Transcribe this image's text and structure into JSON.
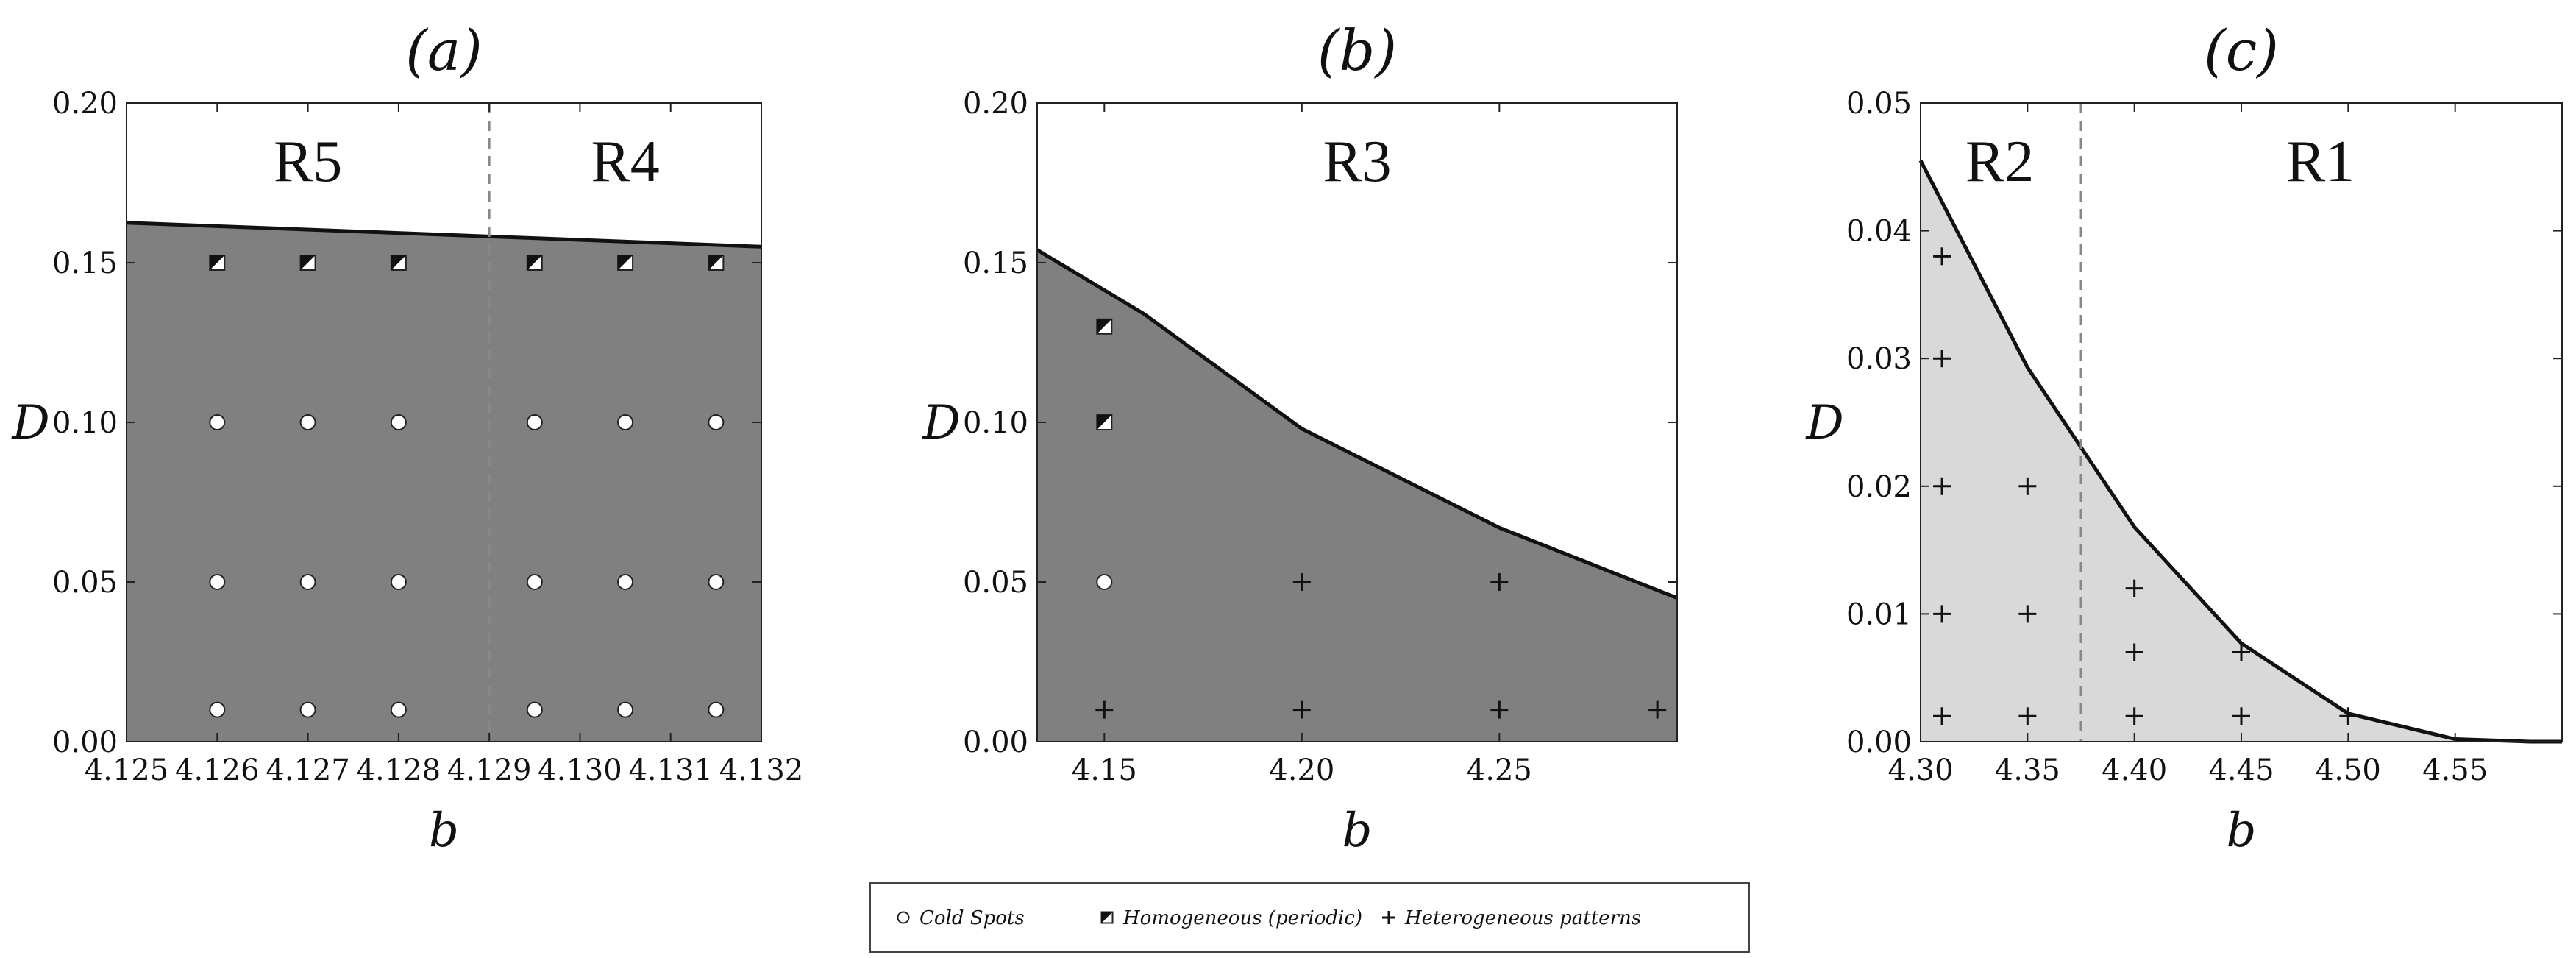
{
  "chart_data": [
    {
      "type": "region",
      "title": "(a)",
      "xlabel": "b",
      "ylabel": "D",
      "xlim": [
        4.125,
        4.132
      ],
      "ylim": [
        0.0,
        0.2
      ],
      "xticks": [
        "4.125",
        "4.126",
        "4.127",
        "4.128",
        "4.129",
        "4.130",
        "4.131",
        "4.132"
      ],
      "yticks": [
        "0.00",
        "0.05",
        "0.10",
        "0.15",
        "0.20"
      ],
      "fill_color": "#808080",
      "boundary": [
        [
          4.125,
          0.1625
        ],
        [
          4.132,
          0.155
        ]
      ],
      "divider_x": 4.129,
      "regions": [
        {
          "label": "R5",
          "x": 4.127,
          "y": 0.182
        },
        {
          "label": "R4",
          "x": 4.1305,
          "y": 0.182
        }
      ],
      "points": [
        {
          "x": 4.126,
          "y": 0.15,
          "marker": "half"
        },
        {
          "x": 4.127,
          "y": 0.15,
          "marker": "half"
        },
        {
          "x": 4.128,
          "y": 0.15,
          "marker": "half"
        },
        {
          "x": 4.1295,
          "y": 0.15,
          "marker": "half"
        },
        {
          "x": 4.1305,
          "y": 0.15,
          "marker": "half"
        },
        {
          "x": 4.1315,
          "y": 0.15,
          "marker": "half"
        },
        {
          "x": 4.126,
          "y": 0.1,
          "marker": "circle"
        },
        {
          "x": 4.127,
          "y": 0.1,
          "marker": "circle"
        },
        {
          "x": 4.128,
          "y": 0.1,
          "marker": "circle"
        },
        {
          "x": 4.1295,
          "y": 0.1,
          "marker": "circle"
        },
        {
          "x": 4.1305,
          "y": 0.1,
          "marker": "circle"
        },
        {
          "x": 4.1315,
          "y": 0.1,
          "marker": "circle"
        },
        {
          "x": 4.126,
          "y": 0.05,
          "marker": "circle"
        },
        {
          "x": 4.127,
          "y": 0.05,
          "marker": "circle"
        },
        {
          "x": 4.128,
          "y": 0.05,
          "marker": "circle"
        },
        {
          "x": 4.1295,
          "y": 0.05,
          "marker": "circle"
        },
        {
          "x": 4.1305,
          "y": 0.05,
          "marker": "circle"
        },
        {
          "x": 4.1315,
          "y": 0.05,
          "marker": "circle"
        },
        {
          "x": 4.126,
          "y": 0.01,
          "marker": "circle"
        },
        {
          "x": 4.127,
          "y": 0.01,
          "marker": "circle"
        },
        {
          "x": 4.128,
          "y": 0.01,
          "marker": "circle"
        },
        {
          "x": 4.1295,
          "y": 0.01,
          "marker": "circle"
        },
        {
          "x": 4.1305,
          "y": 0.01,
          "marker": "circle"
        },
        {
          "x": 4.1315,
          "y": 0.01,
          "marker": "circle"
        }
      ]
    },
    {
      "type": "region",
      "title": "(b)",
      "xlabel": "b",
      "ylabel": "D",
      "xlim": [
        4.133,
        4.295
      ],
      "ylim": [
        0.0,
        0.2
      ],
      "xticks": [
        "4.15",
        "4.20",
        "4.25"
      ],
      "yticks": [
        "0.00",
        "0.05",
        "0.10",
        "0.15",
        "0.20"
      ],
      "fill_color": "#808080",
      "boundary": [
        [
          4.133,
          0.154
        ],
        [
          4.16,
          0.134
        ],
        [
          4.2,
          0.098
        ],
        [
          4.25,
          0.067
        ],
        [
          4.295,
          0.045
        ]
      ],
      "divider_x": null,
      "regions": [
        {
          "label": "R3",
          "x": 4.214,
          "y": 0.182
        }
      ],
      "points": [
        {
          "x": 4.15,
          "y": 0.13,
          "marker": "half"
        },
        {
          "x": 4.15,
          "y": 0.1,
          "marker": "half"
        },
        {
          "x": 4.15,
          "y": 0.05,
          "marker": "circle"
        },
        {
          "x": 4.15,
          "y": 0.01,
          "marker": "plus"
        },
        {
          "x": 4.2,
          "y": 0.05,
          "marker": "plus"
        },
        {
          "x": 4.2,
          "y": 0.01,
          "marker": "plus"
        },
        {
          "x": 4.25,
          "y": 0.05,
          "marker": "plus"
        },
        {
          "x": 4.25,
          "y": 0.01,
          "marker": "plus"
        },
        {
          "x": 4.29,
          "y": 0.01,
          "marker": "plus"
        }
      ]
    },
    {
      "type": "region",
      "title": "(c)",
      "xlabel": "b",
      "ylabel": "D",
      "xlim": [
        4.3,
        4.6
      ],
      "ylim": [
        0.0,
        0.05
      ],
      "xticks": [
        "4.30",
        "4.35",
        "4.40",
        "4.45",
        "4.50",
        "4.55"
      ],
      "yticks": [
        "0.00",
        "0.01",
        "0.02",
        "0.03",
        "0.04",
        "0.05"
      ],
      "fill_color": "#d9d9d9",
      "boundary": [
        [
          4.3,
          0.0455
        ],
        [
          4.35,
          0.0293
        ],
        [
          4.4,
          0.0168
        ],
        [
          4.45,
          0.0077
        ],
        [
          4.5,
          0.0022
        ],
        [
          4.55,
          0.0002
        ],
        [
          4.585,
          0.0
        ],
        [
          4.6,
          0.0
        ]
      ],
      "divider_x": 4.375,
      "regions": [
        {
          "label": "R2",
          "x": 4.337,
          "y": 0.0455
        },
        {
          "label": "R1",
          "x": 4.487,
          "y": 0.0455
        }
      ],
      "points": [
        {
          "x": 4.31,
          "y": 0.038,
          "marker": "plus"
        },
        {
          "x": 4.31,
          "y": 0.03,
          "marker": "plus"
        },
        {
          "x": 4.31,
          "y": 0.02,
          "marker": "plus"
        },
        {
          "x": 4.35,
          "y": 0.02,
          "marker": "plus"
        },
        {
          "x": 4.31,
          "y": 0.01,
          "marker": "plus"
        },
        {
          "x": 4.35,
          "y": 0.01,
          "marker": "plus"
        },
        {
          "x": 4.31,
          "y": 0.002,
          "marker": "plus"
        },
        {
          "x": 4.35,
          "y": 0.002,
          "marker": "plus"
        },
        {
          "x": 4.4,
          "y": 0.012,
          "marker": "plus"
        },
        {
          "x": 4.4,
          "y": 0.007,
          "marker": "plus"
        },
        {
          "x": 4.4,
          "y": 0.002,
          "marker": "plus"
        },
        {
          "x": 4.45,
          "y": 0.007,
          "marker": "plus"
        },
        {
          "x": 4.45,
          "y": 0.002,
          "marker": "plus"
        },
        {
          "x": 4.5,
          "y": 0.002,
          "marker": "plus"
        }
      ]
    }
  ],
  "legend": {
    "placement": "bottom-center",
    "items": [
      {
        "marker": "circle",
        "label": "Cold Spots"
      },
      {
        "marker": "half",
        "label": "Homogeneous (periodic)"
      },
      {
        "marker": "plus",
        "label": "Heterogeneous patterns"
      }
    ]
  }
}
